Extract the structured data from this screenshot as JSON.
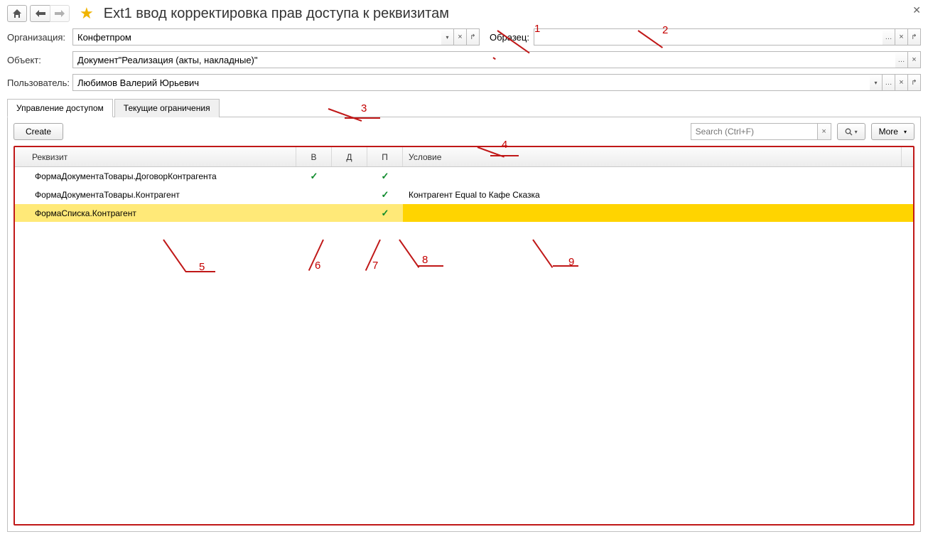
{
  "page_title": "Ext1 ввод корректировка прав доступа к реквизитам",
  "labels": {
    "organization": "Организация:",
    "object": "Объект:",
    "user": "Пользователь:",
    "sample": "Образец:"
  },
  "fields": {
    "organization": "Конфетпром",
    "object": "Документ\"Реализация (акты, накладные)\"",
    "user": "Любимов Валерий Юрьевич",
    "sample": ""
  },
  "tabs": {
    "access": "Управление доступом",
    "restrictions": "Текущие ограничения"
  },
  "toolbar": {
    "create": "Create",
    "search_placeholder": "Search (Ctrl+F)",
    "more": "More"
  },
  "grid": {
    "headers": {
      "attr": "Реквизит",
      "b": "В",
      "d": "Д",
      "p": "П",
      "cond": "Условие"
    },
    "rows": [
      {
        "attr": "ФормаДокументаТовары.ДоговорКонтрагента",
        "b": true,
        "d": false,
        "p": true,
        "cond": "",
        "state": ""
      },
      {
        "attr": "ФормаДокументаТовары.Контрагент",
        "b": false,
        "d": false,
        "p": true,
        "cond": "Контрагент Equal to Кафе Сказка",
        "state": ""
      },
      {
        "attr": "ФормаСписка.Контрагент",
        "b": false,
        "d": false,
        "p": true,
        "cond": "",
        "state": "selected"
      }
    ]
  },
  "annotations": {
    "a1": "1",
    "a2": "2",
    "a3": "3",
    "a4": "4",
    "a5": "5",
    "a6": "6",
    "a7": "7",
    "a8": "8",
    "a9": "9"
  },
  "colors": {
    "annotation_red": "#c01818",
    "checkmark_green": "#0c8a2a",
    "selected_row": "#ffe978",
    "selected_cond": "#ffd400",
    "hint_row": "#fffdd8",
    "star": "#f0b400"
  }
}
